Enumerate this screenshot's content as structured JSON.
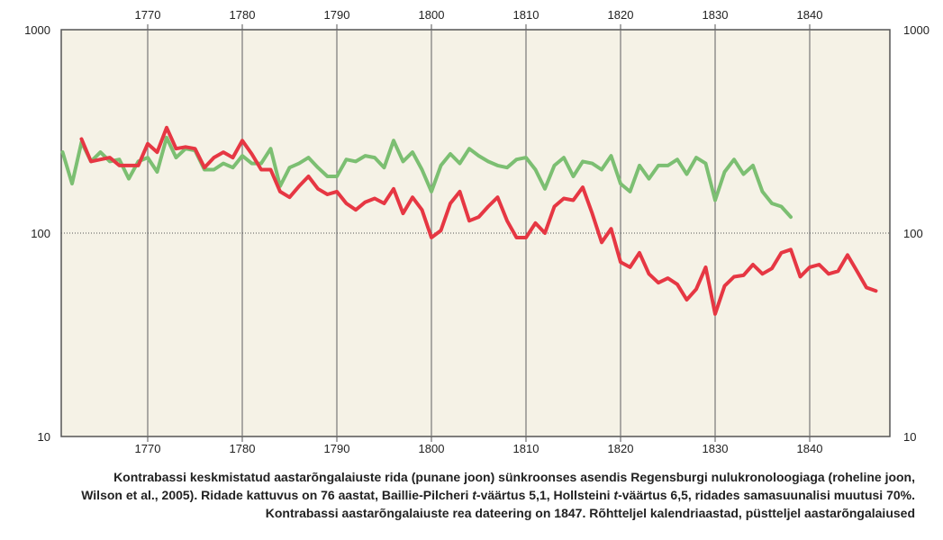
{
  "chart_data": {
    "type": "line",
    "yscale": "log",
    "xlim": [
      1761,
      1848
    ],
    "ylim": [
      10,
      1000
    ],
    "x_ticks": [
      1770,
      1780,
      1790,
      1800,
      1810,
      1820,
      1830,
      1840
    ],
    "y_ticks": [
      10,
      100,
      1000
    ],
    "grid": "vertical lines at each decade, dotted line at 100",
    "background_color": "#f5f2e6",
    "series": [
      {
        "color": "#7cbf72",
        "x_start": 1761,
        "values": [
          250,
          175,
          280,
          225,
          250,
          225,
          230,
          185,
          225,
          235,
          200,
          295,
          235,
          260,
          255,
          205,
          205,
          220,
          210,
          240,
          220,
          220,
          260,
          170,
          210,
          220,
          235,
          210,
          190,
          190,
          230,
          225,
          240,
          235,
          210,
          285,
          225,
          250,
          205,
          160,
          215,
          245,
          220,
          260,
          240,
          225,
          215,
          210,
          230,
          235,
          205,
          165,
          215,
          235,
          190,
          225,
          220,
          205,
          240,
          175,
          160,
          215,
          185,
          215,
          215,
          230,
          195,
          235,
          220,
          145,
          200,
          230,
          195,
          215,
          160,
          140,
          135,
          120
        ]
      },
      {
        "color": "#e63743",
        "x_start": 1763,
        "values": [
          290,
          225,
          230,
          235,
          215,
          215,
          215,
          275,
          250,
          330,
          260,
          265,
          260,
          210,
          235,
          250,
          235,
          285,
          245,
          205,
          205,
          160,
          150,
          170,
          190,
          165,
          155,
          160,
          140,
          130,
          142,
          148,
          140,
          165,
          125,
          150,
          130,
          95,
          103,
          140,
          160,
          115,
          120,
          135,
          150,
          115,
          95,
          95,
          112,
          100,
          135,
          148,
          145,
          168,
          125,
          90,
          105,
          72,
          68,
          80,
          63,
          57,
          60,
          56,
          47,
          53,
          68,
          40,
          55,
          61,
          62,
          70,
          63,
          67,
          80,
          83,
          61,
          68,
          70,
          63,
          65,
          78,
          65,
          54,
          52
        ]
      }
    ]
  },
  "caption": {
    "line1": "Kontrabassi keskmistatud aastarõngalaiuste rida (punane joon) sünkroonses asendis Regensburgi nulukronoloogiaga (roheline joon,",
    "line2_before": "Wilson et al., 2005). Ridade kattuvus on 76 aastat, Baillie-Pilcheri ",
    "line2_t1": "t",
    "line2_mid": "-väärtus 5,1, Hollsteini ",
    "line2_t2": "t",
    "line2_after": "-väärtus 6,5, ridades samasuunalisi muutusi 70%.",
    "line3": "Kontrabassi aastarõngalaiuste rea dateering on 1847. Rõhtteljel kalendriaastad, püstteljel aastarõngalaiused"
  }
}
